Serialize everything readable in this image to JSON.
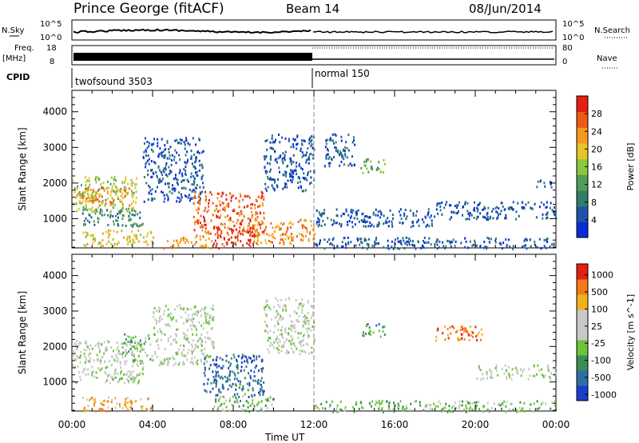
{
  "header": {
    "title": "Prince George (fitACF)",
    "beam": "Beam 14",
    "date": "08/Jun/2014"
  },
  "top_panels": {
    "nsky_label": "N.Sky",
    "nsky_ticks": [
      "10^5",
      "10^0"
    ],
    "nsearch_label": "N.Search",
    "nsearch_ticks": [
      "10^5",
      "10^0"
    ],
    "freq_label_1": "Freq.",
    "freq_label_2": "[MHz]",
    "freq_ticks": [
      "18",
      "8"
    ],
    "nave_label": "Nave",
    "nave_ticks": [
      "80",
      "0"
    ],
    "cpid_label": "CPID",
    "cpid_modes": [
      {
        "name": "twofsound 3503",
        "start_hour": 0,
        "end_hour": 12
      },
      {
        "name": "normal 150",
        "start_hour": 12,
        "end_hour": 24
      }
    ]
  },
  "chart_data": [
    {
      "type": "heatmap",
      "title": "Power",
      "ylabel": "Slant Range [km]",
      "xlabel": "Time UT",
      "xlim": [
        0,
        24
      ],
      "ylim": [
        180,
        4600
      ],
      "yticks": [
        1000,
        2000,
        3000,
        4000
      ],
      "xtick_labels": [
        "00:00",
        "04:00",
        "08:00",
        "12:00",
        "16:00",
        "20:00",
        "00:00"
      ],
      "colorbar": {
        "label": "Power [dB]",
        "ticks": [
          "4",
          "8",
          "12",
          "16",
          "20",
          "24",
          "28"
        ],
        "colors": [
          "#0a2bd8",
          "#1c55a8",
          "#2e7e6a",
          "#4f9d57",
          "#8cc63c",
          "#e6c52a",
          "#f59a1e",
          "#ee5a16",
          "#e31f14"
        ]
      },
      "regions": [
        {
          "t0": 0.0,
          "t1": 3.2,
          "r0": 1200,
          "r1": 2200,
          "level": 4
        },
        {
          "t0": 0.0,
          "t1": 3.0,
          "r0": 1400,
          "r1": 1900,
          "level": 6
        },
        {
          "t0": 0.5,
          "t1": 3.5,
          "r0": 800,
          "r1": 1300,
          "level": 2
        },
        {
          "t0": 0.5,
          "t1": 4.0,
          "r0": 250,
          "r1": 700,
          "level": 5
        },
        {
          "t0": 3.5,
          "t1": 6.5,
          "r0": 1500,
          "r1": 3300,
          "level": 1
        },
        {
          "t0": 4.5,
          "t1": 7.0,
          "r0": 200,
          "r1": 500,
          "level": 6
        },
        {
          "t0": 6.0,
          "t1": 9.5,
          "r0": 500,
          "r1": 1800,
          "level": 7
        },
        {
          "t0": 7.0,
          "t1": 9.0,
          "r0": 200,
          "r1": 800,
          "level": 8
        },
        {
          "t0": 9.0,
          "t1": 12.0,
          "r0": 300,
          "r1": 1000,
          "level": 6
        },
        {
          "t0": 9.5,
          "t1": 12.0,
          "r0": 1800,
          "r1": 3400,
          "level": 1
        },
        {
          "t0": 12.0,
          "t1": 24.0,
          "r0": 180,
          "r1": 500,
          "level": 1
        },
        {
          "t0": 12.0,
          "t1": 18.0,
          "r0": 800,
          "r1": 1300,
          "level": 1
        },
        {
          "t0": 12.5,
          "t1": 14.0,
          "r0": 2500,
          "r1": 3400,
          "level": 1
        },
        {
          "t0": 14.3,
          "t1": 15.5,
          "r0": 2300,
          "r1": 2700,
          "level": 3
        },
        {
          "t0": 18.0,
          "t1": 24.0,
          "r0": 1000,
          "r1": 1500,
          "level": 1
        },
        {
          "t0": 23.0,
          "t1": 24.0,
          "r0": 1900,
          "r1": 2100,
          "level": 1
        }
      ]
    },
    {
      "type": "heatmap",
      "title": "Velocity",
      "ylabel": "Slant Range [km]",
      "xlabel": "Time UT",
      "xlim": [
        0,
        24
      ],
      "ylim": [
        180,
        4600
      ],
      "yticks": [
        1000,
        2000,
        3000,
        4000
      ],
      "xtick_labels": [
        "00:00",
        "04:00",
        "08:00",
        "12:00",
        "16:00",
        "20:00",
        "00:00"
      ],
      "colorbar": {
        "label": "Velocity [m s^-1]",
        "ticks": [
          "1000",
          "500",
          "100",
          "25",
          "-25",
          "-100",
          "-500",
          "-1000"
        ],
        "colors": [
          "#1c3cc9",
          "#2b6fa6",
          "#3b8d53",
          "#6cc43a",
          "#c8c8c8",
          "#c8c8c8",
          "#f2b01e",
          "#f37a17",
          "#e31f14"
        ]
      },
      "regions": [
        {
          "t0": 0.0,
          "t1": 3.5,
          "r0": 1000,
          "r1": 2200,
          "level": 4
        },
        {
          "t0": 0.5,
          "t1": 4.0,
          "r0": 200,
          "r1": 600,
          "level": 6
        },
        {
          "t0": 2.5,
          "t1": 4.0,
          "r0": 1600,
          "r1": 2400,
          "level": 3
        },
        {
          "t0": 4.0,
          "t1": 7.0,
          "r0": 1500,
          "r1": 3200,
          "level": 4
        },
        {
          "t0": 6.5,
          "t1": 9.5,
          "r0": 600,
          "r1": 1800,
          "level": 1
        },
        {
          "t0": 7.0,
          "t1": 10.0,
          "r0": 200,
          "r1": 700,
          "level": 3
        },
        {
          "t0": 9.5,
          "t1": 12.0,
          "r0": 1800,
          "r1": 3400,
          "level": 4
        },
        {
          "t0": 12.0,
          "t1": 24.0,
          "r0": 180,
          "r1": 500,
          "level": 3
        },
        {
          "t0": 14.3,
          "t1": 15.5,
          "r0": 2300,
          "r1": 2700,
          "level": 2
        },
        {
          "t0": 18.0,
          "t1": 20.5,
          "r0": 2200,
          "r1": 2600,
          "level": 7
        },
        {
          "t0": 20.0,
          "t1": 24.0,
          "r0": 1100,
          "r1": 1500,
          "level": 4
        }
      ]
    }
  ]
}
